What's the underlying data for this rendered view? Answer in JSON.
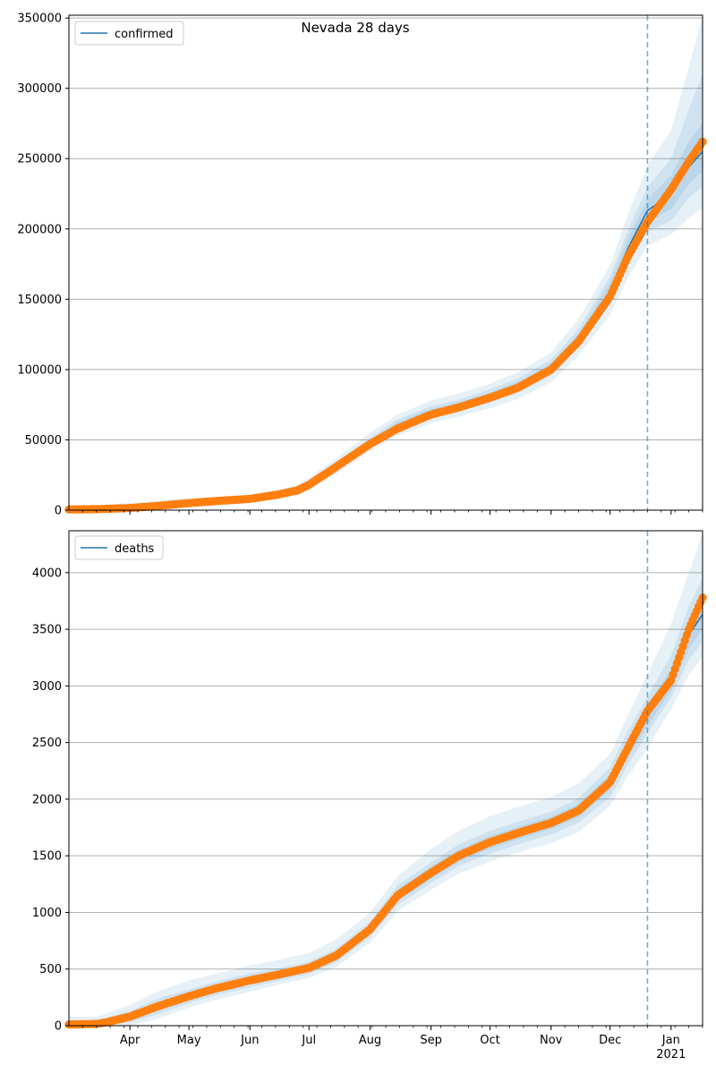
{
  "figure": {
    "title": "Nevada 28 days"
  },
  "colors": {
    "model": "#1f77b4",
    "band": "#1f77b4",
    "observed": "#ff7f0e",
    "vline": "#1f77b4",
    "grid": "#b0b0b0"
  },
  "chart_data": [
    {
      "type": "line",
      "legend": "confirmed",
      "legend_position": "upper-left",
      "grid": "horizontal",
      "xlim": [
        "2020-03-01",
        "2021-01-17"
      ],
      "ylim": [
        0,
        352000
      ],
      "yticks": [
        0,
        50000,
        100000,
        150000,
        200000,
        250000,
        300000,
        350000
      ],
      "vline_date": "2020-12-20",
      "observed": {
        "dates": [
          "2020-03-01",
          "2020-03-15",
          "2020-04-01",
          "2020-04-15",
          "2020-05-01",
          "2020-05-15",
          "2020-06-01",
          "2020-06-15",
          "2020-06-25",
          "2020-07-01",
          "2020-07-15",
          "2020-08-01",
          "2020-08-15",
          "2020-09-01",
          "2020-09-15",
          "2020-10-01",
          "2020-10-15",
          "2020-11-01",
          "2020-11-15",
          "2020-12-01",
          "2020-12-10",
          "2020-12-20",
          "2021-01-01",
          "2021-01-10",
          "2021-01-17"
        ],
        "values": [
          500,
          700,
          1500,
          3000,
          5000,
          6500,
          8000,
          11000,
          14000,
          18000,
          31000,
          47000,
          58000,
          68000,
          73000,
          80000,
          87000,
          100000,
          120000,
          152000,
          180000,
          205000,
          228000,
          248000,
          262000
        ]
      },
      "model": {
        "dates": [
          "2020-03-01",
          "2020-03-15",
          "2020-04-01",
          "2020-04-15",
          "2020-05-01",
          "2020-05-15",
          "2020-06-01",
          "2020-06-15",
          "2020-06-25",
          "2020-07-01",
          "2020-07-15",
          "2020-08-01",
          "2020-08-15",
          "2020-09-01",
          "2020-09-15",
          "2020-10-01",
          "2020-10-15",
          "2020-11-01",
          "2020-11-15",
          "2020-12-01",
          "2020-12-10",
          "2020-12-20",
          "2021-01-01",
          "2021-01-10",
          "2021-01-17"
        ],
        "values": [
          500,
          700,
          1500,
          3000,
          5000,
          6500,
          8000,
          11000,
          14000,
          18000,
          31000,
          48000,
          60000,
          69500,
          74000,
          81000,
          88000,
          101000,
          122000,
          156000,
          186000,
          213000,
          225000,
          244000,
          255000
        ]
      },
      "bands": [
        {
          "lower": [
            0,
            0,
            0,
            1000,
            2500,
            4000,
            5500,
            8000,
            10500,
            14000,
            26000,
            42000,
            53000,
            62000,
            66500,
            72500,
            79000,
            91000,
            110000,
            139000,
            165000,
            188000,
            196000,
            208000,
            215000
          ],
          "upper": [
            3000,
            3500,
            5000,
            6500,
            8500,
            9500,
            11000,
            14500,
            18000,
            23000,
            37000,
            55000,
            68000,
            78000,
            83000,
            90000,
            98000,
            112000,
            136000,
            174000,
            210000,
            245000,
            270000,
            315000,
            352000
          ]
        },
        {
          "lower": [
            0,
            0,
            500,
            1800,
            3500,
            5000,
            6500,
            9200,
            12000,
            15500,
            28000,
            44500,
            56000,
            65500,
            70000,
            76500,
            83000,
            95500,
            115500,
            146000,
            174000,
            198000,
            206000,
            222000,
            230000
          ],
          "upper": [
            2000,
            2400,
            3500,
            4800,
            7000,
            8000,
            9500,
            13000,
            16000,
            20500,
            34000,
            51500,
            64500,
            74000,
            78500,
            86000,
            93500,
            107000,
            129000,
            166500,
            199000,
            230000,
            250000,
            285000,
            310000
          ]
        },
        {
          "lower": [
            0,
            0,
            800,
            2200,
            4000,
            5600,
            7000,
            9800,
            12800,
            16500,
            29500,
            46000,
            58000,
            67500,
            72000,
            79000,
            86000,
            99000,
            119000,
            151000,
            180000,
            205000,
            214000,
            232000,
            241000
          ],
          "upper": [
            1500,
            1800,
            2800,
            4200,
            6300,
            7400,
            8800,
            12200,
            15200,
            19500,
            33000,
            50000,
            62500,
            72000,
            76500,
            83500,
            91000,
            104000,
            125500,
            161500,
            193000,
            221000,
            238000,
            262000,
            275000
          ]
        }
      ]
    },
    {
      "type": "line",
      "legend": "deaths",
      "legend_position": "upper-left",
      "grid": "horizontal",
      "xlim": [
        "2020-03-01",
        "2021-01-17"
      ],
      "ylim": [
        0,
        4370
      ],
      "yticks": [
        0,
        500,
        1000,
        1500,
        2000,
        2500,
        3000,
        3500,
        4000
      ],
      "vline_date": "2020-12-20",
      "xticks": [
        "Apr",
        "May",
        "Jun",
        "Jul",
        "Aug",
        "Sep",
        "Oct",
        "Nov",
        "Dec",
        "Jan"
      ],
      "xtick_year": "2021",
      "observed": {
        "dates": [
          "2020-03-01",
          "2020-03-15",
          "2020-03-20",
          "2020-04-01",
          "2020-04-15",
          "2020-05-01",
          "2020-05-15",
          "2020-06-01",
          "2020-06-15",
          "2020-07-01",
          "2020-07-15",
          "2020-08-01",
          "2020-08-15",
          "2020-09-01",
          "2020-09-15",
          "2020-10-01",
          "2020-10-15",
          "2020-11-01",
          "2020-11-15",
          "2020-12-01",
          "2020-12-10",
          "2020-12-20",
          "2021-01-01",
          "2021-01-10",
          "2021-01-17"
        ],
        "values": [
          10,
          15,
          30,
          80,
          170,
          260,
          330,
          400,
          450,
          510,
          620,
          850,
          1150,
          1350,
          1500,
          1620,
          1700,
          1790,
          1900,
          2150,
          2450,
          2780,
          3050,
          3500,
          3780
        ]
      },
      "model": {
        "dates": [
          "2020-03-01",
          "2020-03-15",
          "2020-03-20",
          "2020-04-01",
          "2020-04-15",
          "2020-05-01",
          "2020-05-15",
          "2020-06-01",
          "2020-06-15",
          "2020-07-01",
          "2020-07-15",
          "2020-08-01",
          "2020-08-15",
          "2020-09-01",
          "2020-09-15",
          "2020-10-01",
          "2020-10-15",
          "2020-11-01",
          "2020-11-15",
          "2020-12-01",
          "2020-12-10",
          "2020-12-20",
          "2021-01-01",
          "2021-01-10",
          "2021-01-17"
        ],
        "values": [
          10,
          15,
          30,
          80,
          170,
          260,
          330,
          400,
          450,
          510,
          620,
          850,
          1150,
          1350,
          1500,
          1620,
          1700,
          1790,
          1900,
          2150,
          2450,
          2740,
          3050,
          3450,
          3630
        ]
      },
      "bands": [
        {
          "lower": [
            0,
            0,
            0,
            0,
            60,
            160,
            230,
            300,
            360,
            420,
            520,
            730,
            1010,
            1200,
            1340,
            1450,
            1530,
            1610,
            1710,
            1940,
            2200,
            2450,
            2800,
            3100,
            3250
          ],
          "upper": [
            80,
            80,
            110,
            180,
            300,
            400,
            460,
            530,
            580,
            640,
            760,
            1000,
            1320,
            1560,
            1720,
            1850,
            1930,
            2020,
            2140,
            2400,
            2740,
            3100,
            3550,
            4000,
            4350
          ]
        },
        {
          "lower": [
            0,
            0,
            0,
            30,
            100,
            200,
            270,
            340,
            395,
            455,
            560,
            780,
            1065,
            1260,
            1410,
            1520,
            1600,
            1690,
            1790,
            2020,
            2300,
            2580,
            2900,
            3230,
            3390
          ],
          "upper": [
            50,
            50,
            70,
            130,
            240,
            320,
            390,
            460,
            505,
            565,
            680,
            920,
            1240,
            1440,
            1600,
            1720,
            1800,
            1890,
            2010,
            2280,
            2600,
            2900,
            3270,
            3700,
            3950
          ]
        },
        {
          "lower": [
            0,
            0,
            0,
            50,
            130,
            225,
            295,
            365,
            420,
            478,
            585,
            805,
            1100,
            1295,
            1445,
            1565,
            1645,
            1735,
            1840,
            2080,
            2370,
            2640,
            2960,
            3330,
            3500
          ],
          "upper": [
            30,
            30,
            50,
            110,
            210,
            295,
            365,
            435,
            480,
            540,
            655,
            890,
            1200,
            1405,
            1555,
            1675,
            1755,
            1845,
            1960,
            2220,
            2520,
            2830,
            3150,
            3580,
            3780
          ]
        }
      ]
    }
  ]
}
